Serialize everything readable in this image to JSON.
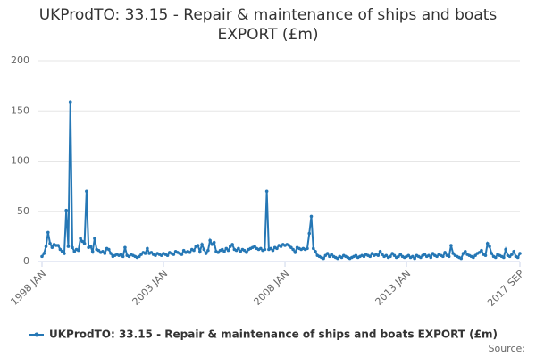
{
  "chart_data": {
    "type": "line",
    "title": "UKProdTO: 33.15 - Repair & maintenance of ships and boats EXPORT (£m)",
    "categories": [
      "1998 JAN",
      null,
      null,
      null,
      null,
      null,
      null,
      null,
      null,
      null,
      null,
      null,
      null,
      null,
      null,
      null,
      null,
      null,
      null,
      null,
      null,
      null,
      null,
      null,
      null,
      null,
      null,
      null,
      null,
      null,
      null,
      null,
      null,
      null,
      null,
      null,
      null,
      null,
      null,
      null,
      null,
      null,
      null,
      null,
      null,
      null,
      null,
      null,
      null,
      null,
      null,
      null,
      null,
      null,
      null,
      null,
      null,
      null,
      null,
      null,
      "2003 JAN",
      null,
      null,
      null,
      null,
      null,
      null,
      null,
      null,
      null,
      null,
      null,
      null,
      null,
      null,
      null,
      null,
      null,
      null,
      null,
      null,
      null,
      null,
      null,
      null,
      null,
      null,
      null,
      null,
      null,
      null,
      null,
      null,
      null,
      null,
      null,
      null,
      null,
      null,
      null,
      null,
      null,
      null,
      null,
      null,
      null,
      null,
      null,
      null,
      null,
      null,
      null,
      null,
      null,
      null,
      null,
      null,
      null,
      null,
      null,
      "2008 JAN",
      null,
      null,
      null,
      null,
      null,
      null,
      null,
      null,
      null,
      null,
      null,
      null,
      null,
      null,
      null,
      null,
      null,
      null,
      null,
      null,
      null,
      null,
      null,
      null,
      null,
      null,
      null,
      null,
      null,
      null,
      null,
      null,
      null,
      null,
      null,
      null,
      null,
      null,
      null,
      null,
      null,
      null,
      null,
      null,
      null,
      null,
      null,
      null,
      null,
      null,
      null,
      null,
      null,
      null,
      null,
      null,
      null,
      null,
      null,
      "2013 JAN",
      null,
      null,
      null,
      null,
      null,
      null,
      null,
      null,
      null,
      null,
      null,
      null,
      null,
      null,
      null,
      null,
      null,
      null,
      null,
      null,
      null,
      null,
      null,
      null,
      null,
      null,
      null,
      null,
      null,
      null,
      null,
      null,
      null,
      null,
      null,
      null,
      null,
      null,
      null,
      null,
      null,
      null,
      null,
      null,
      null,
      null,
      null,
      null,
      null,
      null,
      null,
      null,
      null,
      null,
      null,
      "2017 SEP"
    ],
    "series": [
      {
        "name": "UKProdTO: 33.15 - Repair & maintenance of ships and boats EXPORT (£m)",
        "color": "#2577b5",
        "values": [
          5,
          8,
          15,
          29,
          18,
          14,
          17,
          16,
          16,
          12,
          10,
          8,
          51,
          15,
          159,
          14,
          10,
          12,
          11,
          23,
          20,
          18,
          70,
          14,
          15,
          10,
          23,
          12,
          11,
          9,
          10,
          8,
          13,
          12,
          8,
          5,
          6,
          7,
          6,
          7,
          5,
          14,
          6,
          5,
          7,
          6,
          5,
          4,
          5,
          7,
          9,
          8,
          13,
          8,
          9,
          7,
          6,
          8,
          7,
          6,
          8,
          7,
          6,
          9,
          8,
          7,
          10,
          9,
          8,
          7,
          11,
          9,
          10,
          9,
          12,
          11,
          15,
          16,
          10,
          17,
          12,
          8,
          11,
          21,
          17,
          19,
          10,
          9,
          11,
          12,
          10,
          13,
          11,
          15,
          17,
          12,
          11,
          13,
          10,
          12,
          11,
          9,
          12,
          13,
          14,
          15,
          13,
          12,
          13,
          11,
          12,
          70,
          12,
          13,
          11,
          14,
          13,
          16,
          15,
          17,
          16,
          17,
          16,
          14,
          12,
          9,
          14,
          13,
          12,
          13,
          12,
          13,
          28,
          45,
          13,
          10,
          6,
          5,
          4,
          3,
          6,
          8,
          5,
          7,
          5,
          4,
          3,
          5,
          4,
          6,
          5,
          4,
          3,
          4,
          5,
          6,
          4,
          5,
          6,
          5,
          7,
          6,
          5,
          8,
          6,
          7,
          6,
          10,
          7,
          5,
          6,
          4,
          5,
          8,
          6,
          4,
          5,
          7,
          5,
          4,
          5,
          6,
          4,
          5,
          3,
          6,
          5,
          4,
          6,
          7,
          5,
          6,
          4,
          8,
          6,
          5,
          7,
          6,
          5,
          9,
          6,
          5,
          16,
          8,
          6,
          5,
          4,
          3,
          8,
          10,
          7,
          6,
          5,
          4,
          6,
          8,
          9,
          11,
          7,
          6,
          18,
          15,
          8,
          5,
          4,
          7,
          6,
          5,
          4,
          12,
          6,
          5,
          7,
          10,
          5,
          4,
          8
        ]
      }
    ],
    "ylim": [
      0,
      200
    ],
    "yticks": [
      0,
      50,
      100,
      150,
      200
    ],
    "grid": true,
    "source": "Source:"
  }
}
